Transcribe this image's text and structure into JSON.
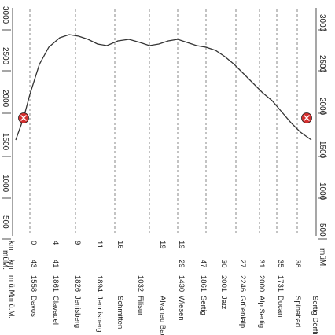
{
  "orientation": "rotated-90-clockwise",
  "elevation_scale": {
    "unit_label": "müM.",
    "ticks": [
      "3000",
      "2500",
      "2000",
      "1500",
      "1000",
      "500"
    ]
  },
  "elevation_scale_right": {
    "unit_label": "müM.",
    "ticks": [
      "3000",
      "2500",
      "2000",
      "1500",
      "1000",
      "500"
    ]
  },
  "columns": {
    "unit_row": [
      "km",
      "km",
      "m ü.M.",
      "m ü.M."
    ]
  },
  "stations": [
    {
      "name": "Davos",
      "elevation": "1558",
      "km_a": "0",
      "km_b": "43"
    },
    {
      "name": "Clavadel",
      "elevation": "1861",
      "km_a": "4",
      "km_b": "41"
    },
    {
      "name": "Jenisberg",
      "elevation": "1826",
      "km_a": "9",
      "km_b": ""
    },
    {
      "name": "Jennisberg",
      "elevation": "1894",
      "km_a": "11",
      "km_b": ""
    },
    {
      "name": "Schmitten",
      "elevation": "",
      "km_a": "16",
      "km_b": ""
    },
    {
      "name": "Filisur",
      "elevation": "1032",
      "km_a": "",
      "km_b": ""
    },
    {
      "name": "Alvaneu Bad",
      "elevation": "",
      "km_a": "19",
      "km_b": ""
    },
    {
      "name": "Wiesen",
      "elevation": "1430",
      "km_a": "19",
      "km_b": "29"
    },
    {
      "name": "Sertig",
      "elevation": "1861",
      "km_a": "",
      "km_b": "47"
    },
    {
      "name": "Jatz",
      "elevation": "2001",
      "km_a": "",
      "km_b": "30"
    },
    {
      "name": "Grüenialp",
      "elevation": "2246",
      "km_a": "",
      "km_b": "27"
    },
    {
      "name": "Alp Sertig",
      "elevation": "2000",
      "km_a": "",
      "km_b": "31"
    },
    {
      "name": "Ducan",
      "elevation": "1731",
      "km_a": "",
      "km_b": "35"
    },
    {
      "name": "Spinabad",
      "elevation": "",
      "km_a": "",
      "km_b": "38"
    },
    {
      "name": "Sertig Dörfli",
      "elevation": "",
      "km_a": "",
      "km_b": ""
    }
  ],
  "colors": {
    "line": "#333333",
    "dash": "#555555",
    "marker_fill": "#d32f2f",
    "marker_ring": "#ffffff"
  }
}
